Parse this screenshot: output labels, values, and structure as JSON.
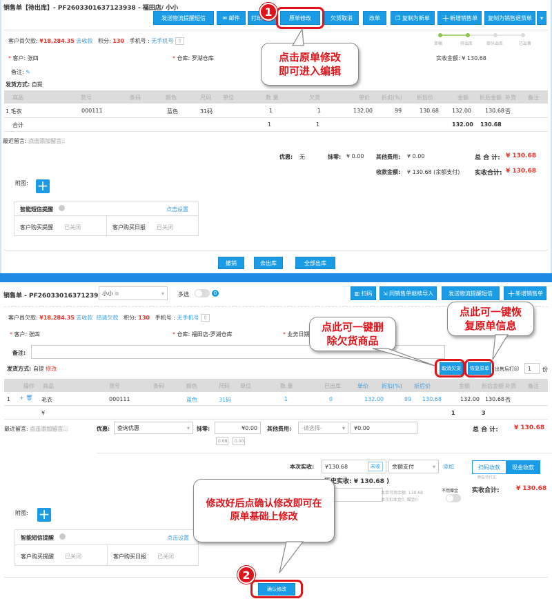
{
  "top": {
    "title": "销售单【待出库】- PF2603301637123938 - 福田店/ 小小",
    "buttons": [
      "发送物流提醒短信",
      "邮件",
      "打印",
      "原单修改",
      "欠货取消",
      "改单",
      "复制为新单",
      "新增销售单",
      "复制为销售退货单"
    ],
    "info": {
      "debt_label": "客户尚欠款:",
      "debt": "¥18,284.35",
      "collect": "去收款",
      "points_label": "积分:",
      "points": "130",
      "phone_label": "手机号 :",
      "phone": "无手机号"
    },
    "steps": [
      "草稿",
      "待出库",
      "部分出库",
      "已出售"
    ],
    "steps_done": 2,
    "customer_label": "客户:",
    "customer": "张四",
    "warehouse_label": "仓库:",
    "warehouse": "罗湖仓库",
    "received_label": "实收金额:",
    "received": "¥ 130.68",
    "remark_label": "备注:",
    "ship_label": "发货方式:",
    "ship": "自提",
    "columns": [
      "商品",
      "货号",
      "条码",
      "颜色",
      "尺码",
      "单位",
      "数 量",
      "欠货",
      "单价",
      "折扣(%)",
      "折后价",
      "金额",
      "折后金额",
      "补货",
      "备注"
    ],
    "row": [
      "1 毛衣",
      "000111",
      "蓝色",
      "31码",
      "1",
      "1",
      "132.00",
      "99",
      "130.68",
      "132.00",
      "130.68",
      "否"
    ],
    "total": [
      "合计",
      "1",
      "1",
      "132.00",
      "130.68"
    ],
    "message_label": "最近留言:",
    "message_placeholder": "点击添加留言..",
    "summary": {
      "discount_label": "优惠:",
      "discount": "无",
      "round_label": "抹零:",
      "round": "¥ 0.00",
      "other_label": "其他费用:",
      "other": "¥ 0.00",
      "total_label": "总 合 计:",
      "total": "¥ 130.68",
      "pay_label": "收款金额:",
      "pay": "¥ 130.68 (余额支付)",
      "actual_label": "实收合计:",
      "actual": "¥ 130.68"
    },
    "attach_label": "附图:",
    "sms": {
      "title": "智能短信提醒",
      "setup": "点击设置",
      "remind_label": "客户购买提醒",
      "remind": "已关闭",
      "daily_label": "客户购买日报",
      "daily": "已关闭"
    },
    "bottom_buttons": [
      "撤销",
      "去出库",
      "全部出库"
    ],
    "callout": "点击原单修改即可进入编辑",
    "step_number": "1"
  },
  "bottom": {
    "title": "销售单 - PF2603301637123938 -",
    "salesperson": "小小",
    "multi_label": "多选",
    "multi_count": "0",
    "buttons": [
      "扫码",
      "同销售单继续导入",
      "发送物流提醒短信",
      "新增销售单"
    ],
    "info": {
      "debt_label": "客户尚欠款:",
      "debt": "¥18,284.35",
      "collect": "去收款",
      "settle": "结清欠款",
      "points_label": "积分:",
      "points": "130",
      "phone_label": "手机号 :",
      "phone": "无手机号"
    },
    "customer_label": "客户:",
    "customer": "张四",
    "warehouse_label": "仓库:",
    "warehouse": "福田店-罗湖仓库",
    "date_label": "业务日期",
    "remark_label": "备注:",
    "ship_label": "发货方式:",
    "ship": "自提",
    "ship_edit": "修改",
    "cancel_owed": "取消欠货",
    "restore": "恢复原单",
    "print_label": "出售后打印",
    "print_copies": "1",
    "copies_unit": "份",
    "columns": [
      "操作",
      "商品",
      "货号",
      "条码",
      "颜色",
      "尺码",
      "单位",
      "数 量",
      "已出库",
      "单价",
      "折扣(%)",
      "折后价",
      "金额",
      "折后金额",
      "补货",
      "备注"
    ],
    "row": [
      "1",
      "毛衣",
      "000111",
      "蓝色",
      "31码",
      "1",
      "0",
      "132.00",
      "99",
      "130.68",
      "132.00",
      "130.68",
      "否"
    ],
    "total": "¥ 130.68",
    "message_label": "最近留言:",
    "message_placeholder": "点击添加留言...",
    "discount_label": "优惠:",
    "discount_select": "查询优惠",
    "round_label": "抹零:",
    "round": "¥0.00",
    "round_quick": [
      "0.68",
      "0.00"
    ],
    "other_label": "其他费用:",
    "other_select": "-请选择-",
    "other": "¥0.00",
    "total_label": "总 合 计:",
    "this_label": "本次实收:",
    "this": "¥130.68",
    "unpaid": "未收",
    "pay_method": "余额支付",
    "add": "添加",
    "pay_tabs": [
      "扫码收款",
      "现金收款"
    ],
    "pay_tab_sub": "微信/支付宝",
    "history": "历史实收: ¥ 130.68 )",
    "balance_input": "00",
    "balance_note1": "本单可用余额: 130.68",
    "balance_note2": "本次扣本金0, 赠金0",
    "no_gift_label": "不用赠金",
    "actual_label": "实收合计:",
    "actual": "¥ 130.68",
    "attach_label": "附图:",
    "sms": {
      "title": "智能短信提醒",
      "setup": "点击设置",
      "remind_label": "客户购买提醒",
      "remind": "已关闭",
      "daily_label": "客户购买日报",
      "daily": "已关闭"
    },
    "confirm": "确认修改",
    "callout_delete": "点此可一键删除欠货商品",
    "callout_restore": "点此可一键恢复原单信息",
    "callout_confirm": "修改好后点确认修改即可在原单基础上修改",
    "step_number": "2"
  },
  "colors": {
    "accent": "#1a9be6",
    "red": "#e8322b",
    "divider": "#1e88e5"
  }
}
